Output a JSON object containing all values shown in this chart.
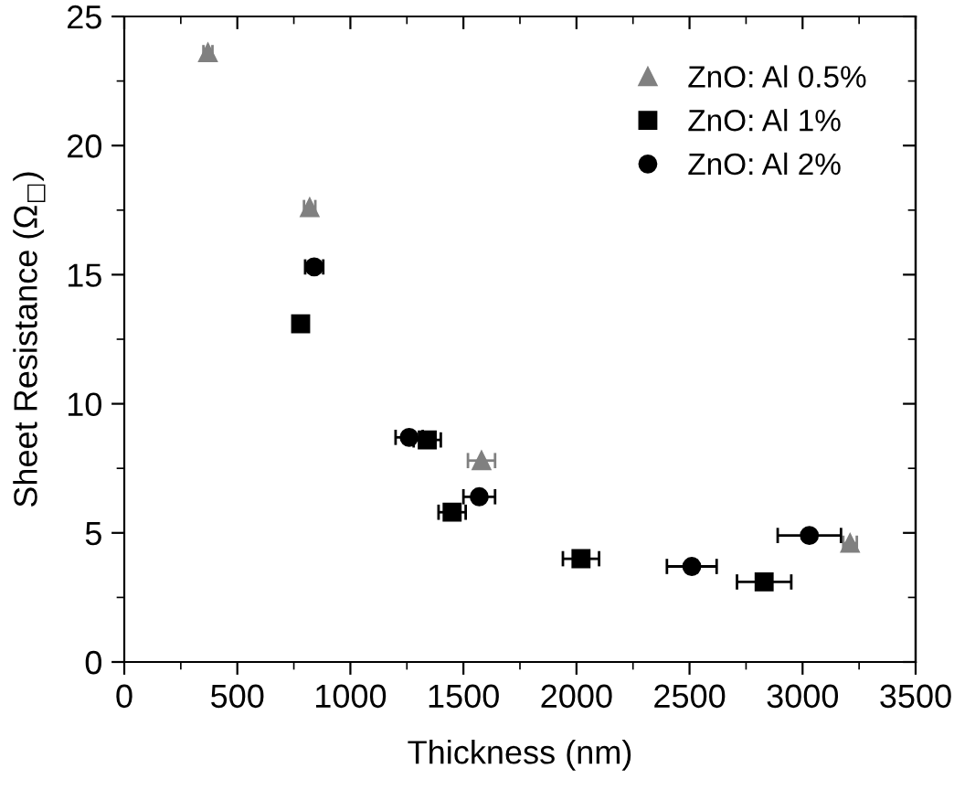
{
  "chart_data": {
    "type": "scatter",
    "xlabel": "Thickness (nm)",
    "ylabel": "Sheet Resistance (Ω$_{□}$)",
    "xlim": [
      0,
      3500
    ],
    "xticks": [
      0,
      500,
      1000,
      1500,
      2000,
      2500,
      3000,
      3500
    ],
    "ylim": [
      0,
      25
    ],
    "yticks": [
      0,
      5,
      10,
      15,
      20,
      25
    ],
    "grid": false,
    "legend": "top right",
    "series": [
      {
        "name": "ZnO: Al 0.5%",
        "color": "#808080",
        "marker": "triangle",
        "x": [
          370,
          820,
          1580,
          3210
        ],
        "values": [
          23.6,
          17.6,
          7.8,
          4.6
        ],
        "xerrors": [
          20,
          25,
          60,
          30
        ]
      },
      {
        "name": "ZnO: Al 1%",
        "color": "#000000",
        "marker": "square",
        "x": [
          780,
          1340,
          1450,
          2020,
          2830
        ],
        "values": [
          13.1,
          8.6,
          5.8,
          4.0,
          3.1
        ],
        "xerrors": [
          25,
          60,
          60,
          80,
          120
        ]
      },
      {
        "name": "ZnO: Al 2%",
        "color": "#000000",
        "marker": "circle",
        "x": [
          840,
          1260,
          1570,
          2510,
          3030
        ],
        "values": [
          15.3,
          8.7,
          6.4,
          3.7,
          4.9
        ],
        "xerrors": [
          40,
          60,
          70,
          110,
          140
        ]
      }
    ]
  }
}
